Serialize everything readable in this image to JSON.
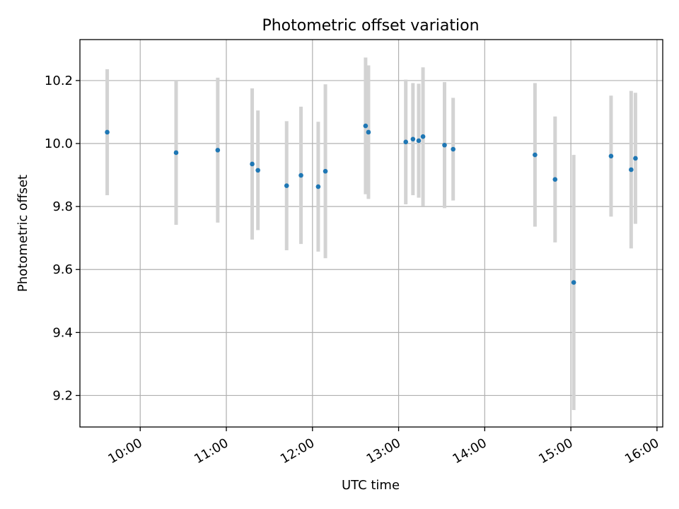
{
  "chart_data": {
    "type": "scatter",
    "title": "Photometric offset variation",
    "xlabel": "UTC time",
    "ylabel": "Photometric offset",
    "xlim": [
      "09:18",
      "16:04"
    ],
    "ylim": [
      9.1,
      10.33
    ],
    "x_ticks": [
      "10:00",
      "11:00",
      "12:00",
      "13:00",
      "14:00",
      "15:00",
      "16:00"
    ],
    "y_ticks": [
      "9.2",
      "9.4",
      "9.6",
      "9.8",
      "10.0",
      "10.2"
    ],
    "grid": true,
    "colors": {
      "point": "#1f77b4",
      "errorbar": "#d3d3d3",
      "grid": "#b0b0b0"
    },
    "points": [
      {
        "x": "09:37",
        "y": 10.036,
        "err": 0.2
      },
      {
        "x": "10:25",
        "y": 9.971,
        "err": 0.229
      },
      {
        "x": "10:54",
        "y": 9.979,
        "err": 0.23
      },
      {
        "x": "11:18",
        "y": 9.935,
        "err": 0.24
      },
      {
        "x": "11:22",
        "y": 9.915,
        "err": 0.19
      },
      {
        "x": "11:42",
        "y": 9.866,
        "err": 0.205
      },
      {
        "x": "11:52",
        "y": 9.899,
        "err": 0.218
      },
      {
        "x": "12:04",
        "y": 9.863,
        "err": 0.206
      },
      {
        "x": "12:09",
        "y": 9.912,
        "err": 0.276
      },
      {
        "x": "12:37",
        "y": 10.056,
        "err": 0.217
      },
      {
        "x": "12:39",
        "y": 10.036,
        "err": 0.212
      },
      {
        "x": "13:05",
        "y": 10.005,
        "err": 0.198
      },
      {
        "x": "13:10",
        "y": 10.014,
        "err": 0.178
      },
      {
        "x": "13:14",
        "y": 10.009,
        "err": 0.181
      },
      {
        "x": "13:17",
        "y": 10.022,
        "err": 0.22
      },
      {
        "x": "13:32",
        "y": 9.995,
        "err": 0.2
      },
      {
        "x": "13:38",
        "y": 9.982,
        "err": 0.163
      },
      {
        "x": "14:35",
        "y": 9.964,
        "err": 0.228
      },
      {
        "x": "14:49",
        "y": 9.886,
        "err": 0.2
      },
      {
        "x": "15:02",
        "y": 9.559,
        "err": 0.405
      },
      {
        "x": "15:28",
        "y": 9.96,
        "err": 0.192
      },
      {
        "x": "15:42",
        "y": 9.917,
        "err": 0.25
      },
      {
        "x": "15:45",
        "y": 9.953,
        "err": 0.208
      }
    ]
  }
}
